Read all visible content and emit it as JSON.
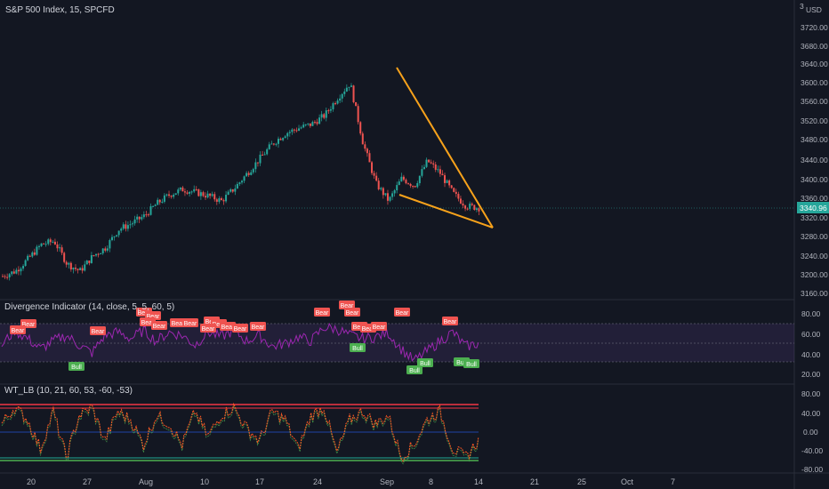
{
  "header": {
    "title": "S&P 500 Index, 15, SPCFD",
    "currency": "USD",
    "top_tick": "3"
  },
  "price_axis": {
    "ticks": [
      "3720.00",
      "3680.00",
      "3640.00",
      "3600.00",
      "3560.00",
      "3520.00",
      "3480.00",
      "3440.00",
      "3400.00",
      "3360.00",
      "3320.00",
      "3280.00",
      "3240.00",
      "3200.00",
      "3160.00"
    ]
  },
  "last_price": {
    "label": "3340.96",
    "color": "#26a69a"
  },
  "x_axis": {
    "labels": [
      "20",
      "27",
      "Aug",
      "10",
      "17",
      "24",
      "Sep",
      "8",
      "14",
      "21",
      "25",
      "Oct",
      "7"
    ]
  },
  "panes": {
    "divergence": {
      "title": "Divergence Indicator (14, close, 5, 5, 60, 5)",
      "ticks": [
        "80.00",
        "60.00",
        "40.00",
        "20.00"
      ],
      "bear_label": "Bear",
      "bull_label": "Bull"
    },
    "wt": {
      "title": "WT_LB (10, 21, 60, 53, -60, -53)",
      "ticks": [
        "80.00",
        "40.00",
        "0.00",
        "-40.00",
        "-80.00"
      ]
    }
  },
  "colors": {
    "bg": "#131722",
    "up": "#26a69a",
    "down": "#ef5350",
    "trendline": "#f7a21b",
    "rsi": "#9c27b0",
    "bear": "#ef5350",
    "bull": "#4caf50",
    "wt_line": "#ff5722"
  },
  "chart_data": [
    {
      "type": "candlestick",
      "title": "S&P 500 Index, 15, SPCFD",
      "ylim": [
        3160,
        3720
      ],
      "x_labels": [
        "20",
        "27",
        "Aug",
        "10",
        "17",
        "24",
        "Sep",
        "8",
        "14",
        "21",
        "25",
        "Oct",
        "7"
      ],
      "series": [
        {
          "values": [
            3205,
            3215,
            3240,
            3268,
            3275,
            3230,
            3215,
            3245,
            3262,
            3298,
            3310,
            3325,
            3350,
            3368,
            3378,
            3372,
            3365,
            3355,
            3380,
            3410,
            3440,
            3470,
            3490,
            3500,
            3508,
            3525,
            3560,
            3590,
            3470,
            3390,
            3355,
            3400,
            3385,
            3435,
            3410,
            3370,
            3345,
            3341
          ]
        }
      ],
      "last": 3340.96,
      "trendlines": [
        {
          "from": [
            "Sep",
            3634
          ],
          "to": [
            "14",
            3308
          ]
        },
        {
          "from": [
            "Sep",
            3368
          ],
          "to": [
            "14",
            3308
          ]
        }
      ]
    },
    {
      "type": "line",
      "title": "Divergence Indicator (14, close, 5, 5, 60, 5)",
      "ylim": [
        10,
        90
      ],
      "band": [
        30,
        70
      ],
      "series": [
        {
          "values": [
            50,
            68,
            58,
            45,
            55,
            62,
            50,
            40,
            62,
            66,
            58,
            68,
            55,
            66,
            62,
            50,
            66,
            60,
            68,
            55,
            62,
            48,
            52,
            60,
            55,
            72,
            70,
            62,
            58,
            60,
            65,
            45,
            30,
            42,
            55,
            66,
            48,
            52
          ]
        }
      ],
      "bear_markers": 23,
      "bull_markers": 6
    },
    {
      "type": "line",
      "title": "WT_LB (10, 21, 60, 53, -60, -53)",
      "ylim": [
        -90,
        90
      ],
      "hlines": [
        60,
        53,
        0,
        -53,
        -60
      ],
      "series": [
        {
          "values": [
            20,
            60,
            30,
            -40,
            50,
            -60,
            40,
            60,
            -20,
            50,
            30,
            -30,
            40,
            20,
            -30,
            50,
            -10,
            40,
            60,
            10,
            -20,
            50,
            30,
            -40,
            40,
            60,
            -50,
            30,
            50,
            20,
            40,
            -60,
            -30,
            30,
            50,
            -40,
            -60,
            -20
          ]
        }
      ]
    }
  ]
}
